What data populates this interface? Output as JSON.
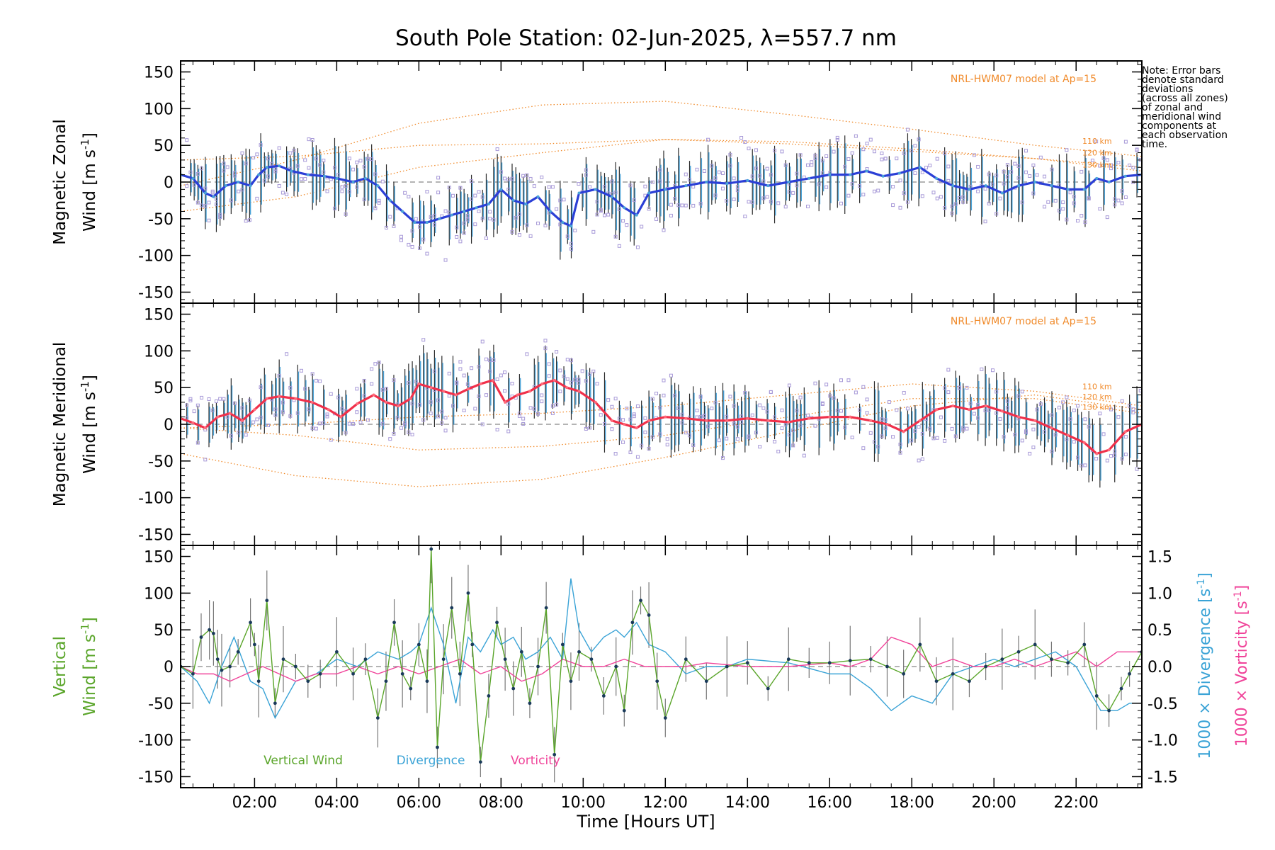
{
  "figure": {
    "title": "South Pole Station: 02-Jun-2025, λ=557.7 nm",
    "xlabel": "Time [Hours UT]",
    "note_lines": [
      "Note: Error bars",
      "denote standard",
      "deviations",
      "(across all zones)",
      "of zonal and",
      "meridional wind",
      "components at",
      "each observation",
      "time."
    ],
    "model_label": "NRL-HWM07 model at Ap=15",
    "model_altitudes": [
      "110 km",
      "120 km",
      "130 km"
    ]
  },
  "colors": {
    "zonal": "#2b3fd6",
    "zonal_points": "#4aa3d8",
    "meridional": "#f0304a",
    "vertical": "#5aa52a",
    "divergence": "#3aa3d6",
    "vorticity": "#f0449a",
    "model": "#f08a2a",
    "scatter": "#a89ad8",
    "errbar": "#2a2a2a",
    "dashed": "#888888"
  },
  "chart_data": [
    {
      "type": "line",
      "id": "zonal",
      "ylabel": "Magnetic Zonal",
      "ylabel2": "Wind [m s",
      "ylabel_sup": "-1",
      "ylabel_end": "]",
      "xlim": [
        0.2,
        23.6
      ],
      "ylim": [
        -165,
        165
      ],
      "yticks": [
        150,
        100,
        50,
        0,
        -50,
        -100,
        -150
      ],
      "series": [
        {
          "name": "Zonal wind",
          "x": [
            0.2,
            0.5,
            0.8,
            1.0,
            1.3,
            1.6,
            1.9,
            2.1,
            2.3,
            2.6,
            2.9,
            3.3,
            3.7,
            4.0,
            4.4,
            4.7,
            5.0,
            5.3,
            5.6,
            5.9,
            6.2,
            6.5,
            6.8,
            7.1,
            7.4,
            7.7,
            8.0,
            8.3,
            8.6,
            8.9,
            9.2,
            9.5,
            9.7,
            9.9,
            10.3,
            10.7,
            11.0,
            11.3,
            11.6,
            12.0,
            12.5,
            13.0,
            13.5,
            14.0,
            14.5,
            15.0,
            15.5,
            16.0,
            16.5,
            16.9,
            17.3,
            17.7,
            18.2,
            18.6,
            19.0,
            19.4,
            19.8,
            20.2,
            20.6,
            21.0,
            21.4,
            21.8,
            22.2,
            22.5,
            22.8,
            23.2,
            23.6
          ],
          "y": [
            10,
            5,
            -15,
            -20,
            -5,
            0,
            -5,
            10,
            20,
            22,
            15,
            10,
            8,
            5,
            0,
            5,
            -5,
            -25,
            -40,
            -55,
            -55,
            -50,
            -45,
            -40,
            -35,
            -30,
            -10,
            -25,
            -30,
            -20,
            -40,
            -55,
            -60,
            -15,
            -10,
            -20,
            -35,
            -45,
            -15,
            -10,
            -5,
            0,
            -2,
            2,
            -5,
            0,
            5,
            10,
            10,
            15,
            8,
            12,
            20,
            5,
            -5,
            -10,
            -5,
            -15,
            -5,
            0,
            -5,
            -10,
            -10,
            5,
            0,
            8,
            10
          ]
        },
        {
          "name": "NRL-HWM07 110 km",
          "x": [
            0.2,
            3,
            6,
            9,
            12,
            15,
            18,
            21,
            23.6
          ],
          "y": [
            30,
            35,
            50,
            52,
            58,
            52,
            42,
            32,
            20
          ]
        },
        {
          "name": "NRL-HWM07 120 km",
          "x": [
            0.2,
            3,
            6,
            9,
            12,
            15,
            18,
            21,
            23.6
          ],
          "y": [
            -5,
            30,
            80,
            105,
            110,
            92,
            72,
            50,
            35
          ]
        },
        {
          "name": "NRL-HWM07 130 km",
          "x": [
            0.2,
            3,
            6,
            9,
            12,
            15,
            18,
            21,
            23.6
          ],
          "y": [
            -40,
            -20,
            20,
            40,
            58,
            55,
            45,
            32,
            15
          ]
        }
      ]
    },
    {
      "type": "line",
      "id": "meridional",
      "ylabel": "Magnetic Meridional",
      "ylabel2": "Wind [m s",
      "ylabel_sup": "-1",
      "ylabel_end": "]",
      "xlim": [
        0.2,
        23.6
      ],
      "ylim": [
        -165,
        165
      ],
      "yticks": [
        150,
        100,
        50,
        0,
        -50,
        -100,
        -150
      ],
      "series": [
        {
          "name": "Meridional wind",
          "x": [
            0.2,
            0.5,
            0.8,
            1.1,
            1.4,
            1.7,
            2.0,
            2.3,
            2.6,
            3.0,
            3.4,
            3.8,
            4.1,
            4.5,
            4.9,
            5.2,
            5.5,
            5.8,
            6.0,
            6.3,
            6.6,
            6.9,
            7.2,
            7.5,
            7.8,
            8.1,
            8.4,
            8.7,
            9.0,
            9.3,
            9.6,
            9.9,
            10.3,
            10.7,
            11.0,
            11.3,
            11.6,
            12.0,
            12.5,
            13.0,
            13.5,
            14.0,
            14.5,
            15.0,
            15.5,
            16.0,
            16.5,
            17.0,
            17.4,
            17.8,
            18.2,
            18.6,
            19.0,
            19.4,
            19.8,
            20.2,
            20.6,
            21.0,
            21.4,
            21.8,
            22.2,
            22.5,
            22.8,
            23.2,
            23.6
          ],
          "y": [
            8,
            2,
            -5,
            10,
            15,
            5,
            20,
            35,
            38,
            35,
            30,
            20,
            10,
            28,
            40,
            30,
            25,
            35,
            55,
            50,
            45,
            40,
            48,
            55,
            60,
            30,
            40,
            45,
            55,
            60,
            50,
            45,
            30,
            5,
            0,
            -5,
            5,
            10,
            8,
            5,
            5,
            8,
            5,
            3,
            8,
            10,
            10,
            5,
            0,
            -10,
            5,
            20,
            25,
            20,
            25,
            18,
            10,
            5,
            -5,
            -15,
            -25,
            -40,
            -35,
            -10,
            0
          ]
        },
        {
          "name": "NRL-HWM07 110 km",
          "x": [
            0.2,
            3,
            6,
            9,
            12,
            15,
            18,
            21,
            23.6
          ],
          "y": [
            -5,
            0,
            10,
            15,
            25,
            40,
            55,
            45,
            25
          ]
        },
        {
          "name": "NRL-HWM07 120 km",
          "x": [
            0.2,
            3,
            6,
            9,
            12,
            15,
            18,
            21,
            23.6
          ],
          "y": [
            -40,
            -70,
            -85,
            -75,
            -45,
            -10,
            25,
            40,
            20
          ]
        },
        {
          "name": "NRL-HWM07 130 km",
          "x": [
            0.2,
            3,
            6,
            9,
            12,
            15,
            18,
            21,
            23.6
          ],
          "y": [
            -5,
            -15,
            -35,
            -30,
            -15,
            10,
            35,
            35,
            15
          ]
        }
      ]
    },
    {
      "type": "line",
      "id": "vertical",
      "ylabel": "Vertical",
      "ylabel2": "Wind [m s",
      "ylabel_sup": "-1",
      "ylabel_end": "]",
      "y2label_div": "1000 × Divergence [s",
      "y2label_vor": "1000 × Vorticity [s",
      "y2_sup": "-1",
      "y2_end": "]",
      "xlim": [
        0.2,
        23.6
      ],
      "ylim": [
        -165,
        165
      ],
      "y2lim": [
        -1.65,
        1.65
      ],
      "yticks": [
        150,
        100,
        50,
        0,
        -50,
        -100,
        -150
      ],
      "y2ticks": [
        1.5,
        1.0,
        0.5,
        0.0,
        -0.5,
        -1.0,
        -1.5
      ],
      "legend": [
        "Vertical Wind",
        "Divergence",
        "Vorticity"
      ],
      "series": [
        {
          "name": "Vertical Wind",
          "x": [
            0.2,
            0.5,
            0.7,
            0.9,
            1.0,
            1.1,
            1.2,
            1.4,
            1.6,
            1.9,
            2.0,
            2.1,
            2.3,
            2.5,
            2.7,
            3.0,
            3.3,
            3.6,
            4.0,
            4.4,
            4.7,
            5.0,
            5.2,
            5.4,
            5.6,
            5.8,
            6.0,
            6.2,
            6.3,
            6.45,
            6.6,
            6.8,
            7.0,
            7.2,
            7.3,
            7.5,
            7.7,
            7.9,
            8.1,
            8.3,
            8.5,
            8.7,
            8.9,
            9.1,
            9.3,
            9.5,
            9.7,
            9.9,
            10.2,
            10.5,
            10.8,
            11.0,
            11.2,
            11.4,
            11.6,
            11.8,
            12.0,
            12.5,
            13.0,
            13.5,
            14.0,
            14.5,
            15.0,
            15.5,
            16.0,
            16.5,
            17.0,
            17.4,
            17.8,
            18.2,
            18.6,
            19.0,
            19.4,
            19.8,
            20.2,
            20.6,
            21.0,
            21.4,
            21.8,
            22.2,
            22.5,
            22.8,
            23.1,
            23.3,
            23.6
          ],
          "y": [
            0,
            -10,
            40,
            50,
            45,
            10,
            -5,
            0,
            20,
            60,
            30,
            -20,
            90,
            -50,
            10,
            0,
            -20,
            -10,
            20,
            -10,
            10,
            -70,
            -20,
            60,
            -10,
            -30,
            30,
            -20,
            160,
            -110,
            10,
            80,
            -10,
            100,
            30,
            -130,
            -40,
            60,
            10,
            -30,
            20,
            -50,
            0,
            80,
            -120,
            30,
            -20,
            20,
            10,
            -40,
            0,
            -60,
            60,
            90,
            70,
            -20,
            -70,
            10,
            -20,
            0,
            5,
            -30,
            10,
            5,
            5,
            8,
            10,
            0,
            -10,
            30,
            -20,
            -10,
            -20,
            0,
            10,
            20,
            30,
            10,
            5,
            30,
            -40,
            -60,
            -30,
            -10,
            20
          ]
        },
        {
          "name": "Divergence",
          "x": [
            0.2,
            0.6,
            0.9,
            1.2,
            1.5,
            1.9,
            2.2,
            2.5,
            3.0,
            3.5,
            4.0,
            4.5,
            5.0,
            5.5,
            5.8,
            6.0,
            6.3,
            6.6,
            6.9,
            7.2,
            7.5,
            7.8,
            8.0,
            8.3,
            8.6,
            8.9,
            9.2,
            9.5,
            9.7,
            9.9,
            10.2,
            10.5,
            10.8,
            11.0,
            11.3,
            11.6,
            12.0,
            12.5,
            13.0,
            13.5,
            14.0,
            15.0,
            16.0,
            16.5,
            17.0,
            17.5,
            18.0,
            18.5,
            19.0,
            19.5,
            20.0,
            20.5,
            21.0,
            21.5,
            22.0,
            22.3,
            22.6,
            23.0,
            23.3,
            23.6
          ],
          "y": [
            0.0,
            -0.2,
            -0.5,
            0.0,
            0.4,
            -0.2,
            -0.3,
            -0.7,
            -0.2,
            -0.1,
            0.1,
            0.0,
            0.2,
            0.1,
            0.2,
            0.3,
            0.8,
            0.3,
            -0.5,
            0.4,
            0.2,
            0.5,
            0.3,
            0.4,
            0.1,
            0.2,
            0.4,
            0.1,
            1.2,
            0.5,
            0.2,
            0.4,
            0.5,
            0.4,
            0.6,
            0.3,
            0.2,
            -0.1,
            0.0,
            0.0,
            0.1,
            0.05,
            -0.1,
            -0.1,
            -0.3,
            -0.6,
            -0.4,
            -0.5,
            -0.1,
            0.0,
            0.1,
            0.0,
            0.1,
            0.2,
            0.0,
            -0.3,
            -0.6,
            -0.6,
            -0.5,
            -0.5
          ]
        },
        {
          "name": "Vorticity",
          "x": [
            0.2,
            0.6,
            1.0,
            1.4,
            1.8,
            2.2,
            2.6,
            3.0,
            3.5,
            4.0,
            4.5,
            5.0,
            5.5,
            6.0,
            6.5,
            7.0,
            7.5,
            8.0,
            8.5,
            9.0,
            9.5,
            10.0,
            10.5,
            11.0,
            11.5,
            12.0,
            12.5,
            13.0,
            14.0,
            15.0,
            16.0,
            16.5,
            17.0,
            17.5,
            18.0,
            18.5,
            19.0,
            19.5,
            20.0,
            20.5,
            21.0,
            21.5,
            22.0,
            22.5,
            23.0,
            23.6
          ],
          "y": [
            0.0,
            -0.1,
            -0.1,
            -0.2,
            -0.1,
            0.0,
            -0.1,
            -0.2,
            -0.1,
            -0.1,
            0.0,
            -0.1,
            0.0,
            -0.1,
            0.0,
            0.1,
            -0.1,
            0.0,
            -0.2,
            -0.1,
            0.1,
            0.0,
            0.0,
            0.1,
            0.0,
            0.0,
            0.0,
            0.05,
            0.0,
            0.0,
            0.05,
            0.0,
            0.1,
            0.4,
            0.3,
            0.0,
            0.1,
            0.0,
            0.0,
            0.1,
            0.0,
            0.1,
            0.2,
            0.0,
            0.2,
            0.2
          ]
        }
      ]
    }
  ],
  "xaxis": {
    "xlim": [
      0.2,
      23.6
    ],
    "ticks": [
      {
        "v": 2,
        "label": "02:00"
      },
      {
        "v": 4,
        "label": "04:00"
      },
      {
        "v": 6,
        "label": "06:00"
      },
      {
        "v": 8,
        "label": "08:00"
      },
      {
        "v": 10,
        "label": "10:00"
      },
      {
        "v": 12,
        "label": "12:00"
      },
      {
        "v": 14,
        "label": "14:00"
      },
      {
        "v": 16,
        "label": "16:00"
      },
      {
        "v": 18,
        "label": "18:00"
      },
      {
        "v": 20,
        "label": "20:00"
      },
      {
        "v": 22,
        "label": "22:00"
      }
    ]
  }
}
